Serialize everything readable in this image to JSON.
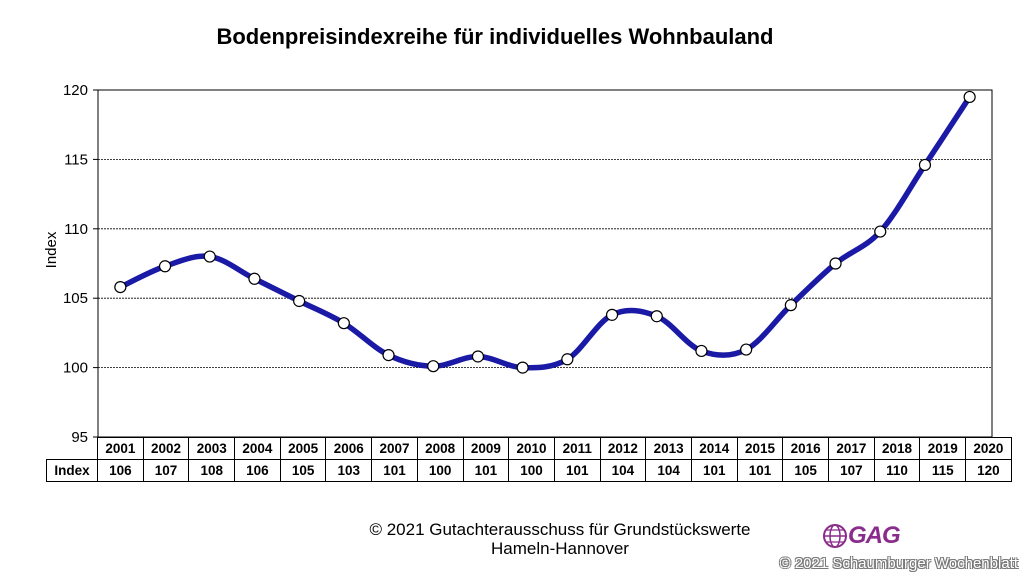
{
  "chart_data": {
    "type": "line",
    "title": "Bodenpreisindexreihe für individuelles Wohnbauland",
    "xlabel": "",
    "ylabel": "Index",
    "ylim": [
      95,
      120
    ],
    "yticks": [
      95,
      100,
      105,
      110,
      115,
      120
    ],
    "grid": true,
    "x": [
      "2001",
      "2002",
      "2003",
      "2004",
      "2005",
      "2006",
      "2007",
      "2008",
      "2009",
      "2010",
      "2011",
      "2012",
      "2013",
      "2014",
      "2015",
      "2016",
      "2017",
      "2018",
      "2019",
      "2020"
    ],
    "values": [
      105.8,
      107.3,
      108.0,
      106.4,
      104.8,
      103.2,
      100.9,
      100.1,
      100.8,
      100.0,
      100.6,
      103.8,
      103.7,
      101.2,
      101.3,
      104.5,
      107.5,
      109.8,
      114.6,
      119.5
    ],
    "table": {
      "row_label": "Index",
      "values": [
        "106",
        "107",
        "108",
        "106",
        "105",
        "103",
        "101",
        "100",
        "101",
        "100",
        "101",
        "104",
        "104",
        "101",
        "101",
        "105",
        "107",
        "110",
        "115",
        "120"
      ]
    },
    "line_color": "#1a1aa6"
  },
  "footer": {
    "copyright_line1": "© 2021 Gutachterausschuss für Grundstückswerte",
    "copyright_line2": "Hameln-Hannover",
    "logo_text": "GAG",
    "logo_color": "#8a2c8c",
    "watermark": "© 2021 Schaumburger Wochenblatt"
  }
}
